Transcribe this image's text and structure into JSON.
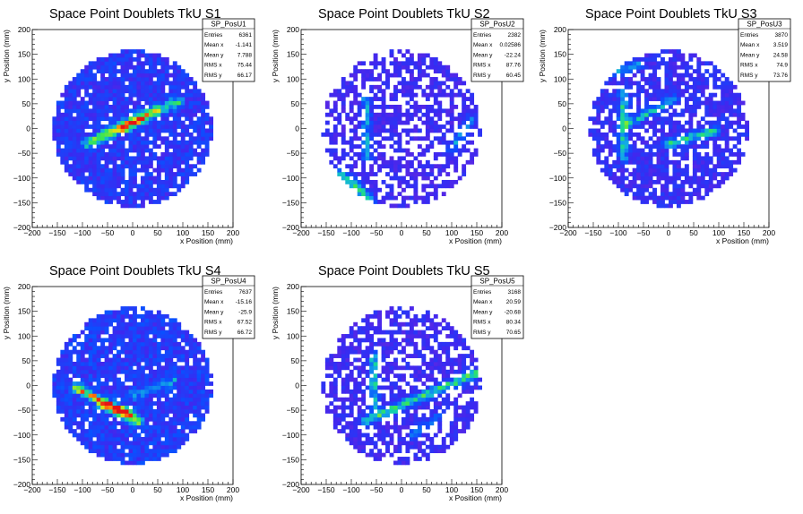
{
  "chart_data": [
    {
      "type": "heatmap",
      "title": "Space Point Doublets TkU S1",
      "xlabel": "x Position (mm)",
      "ylabel": "y Position (mm)",
      "xlim": [
        -200,
        200
      ],
      "ylim": [
        -200,
        200
      ],
      "x_ticks": [
        "−200",
        "−150",
        "−100",
        "−50",
        "0",
        "50",
        "100",
        "150",
        "200"
      ],
      "y_ticks": [
        "−200",
        "−150",
        "−100",
        "−50",
        "0",
        "50",
        "100",
        "150",
        "200"
      ],
      "stats": {
        "name": "SP_PosU1",
        "rows": [
          {
            "label": "Entries",
            "value": "6361"
          },
          {
            "label": "Mean x",
            "value": "-1.141"
          },
          {
            "label": "Mean y",
            "value": "7.788"
          },
          {
            "label": "RMS x",
            "value": "75.44"
          },
          {
            "label": "RMS y",
            "value": "66.17"
          }
        ]
      },
      "features": {
        "lines": [
          {
            "x1": -90,
            "y1": -30,
            "x2": 90,
            "y2": 55,
            "strength": 0.45
          },
          {
            "x1": -20,
            "y1": 0,
            "x2": 20,
            "y2": 20,
            "strength": 0.35
          },
          {
            "x1": -60,
            "y1": -10,
            "x2": 40,
            "y2": 40,
            "strength": 0.2
          }
        ],
        "base": 0.22,
        "empty_rate": 0.12,
        "seed": 11
      }
    },
    {
      "type": "heatmap",
      "title": "Space Point Doublets TkU S2",
      "xlabel": "x Position (mm)",
      "ylabel": "y Position (mm)",
      "xlim": [
        -200,
        200
      ],
      "ylim": [
        -200,
        200
      ],
      "x_ticks": [
        "−200",
        "−150",
        "−100",
        "−50",
        "0",
        "50",
        "100",
        "150",
        "200"
      ],
      "y_ticks": [
        "−200",
        "−150",
        "−100",
        "−50",
        "0",
        "50",
        "100",
        "150",
        "200"
      ],
      "stats": {
        "name": "SP_PosU2",
        "rows": [
          {
            "label": "Entries",
            "value": "2382"
          },
          {
            "label": "Mean x",
            "value": "0.02586"
          },
          {
            "label": "Mean y",
            "value": "-22.24"
          },
          {
            "label": "RMS x",
            "value": "87.76"
          },
          {
            "label": "RMS y",
            "value": "60.45"
          }
        ]
      },
      "features": {
        "lines": [
          {
            "x1": -120,
            "y1": -90,
            "x2": -60,
            "y2": -145,
            "strength": 0.4
          },
          {
            "x1": -70,
            "y1": -60,
            "x2": -70,
            "y2": 60,
            "strength": 0.3
          },
          {
            "x1": 100,
            "y1": -40,
            "x2": 140,
            "y2": 20,
            "strength": 0.25
          }
        ],
        "base": 0.14,
        "empty_rate": 0.38,
        "seed": 27
      }
    },
    {
      "type": "heatmap",
      "title": "Space Point Doublets TkU S3",
      "xlabel": "x Position (mm)",
      "ylabel": "y Position (mm)",
      "xlim": [
        -200,
        200
      ],
      "ylim": [
        -200,
        200
      ],
      "x_ticks": [
        "−200",
        "−150",
        "−100",
        "−50",
        "0",
        "50",
        "100",
        "150",
        "200"
      ],
      "y_ticks": [
        "−200",
        "−150",
        "−100",
        "−50",
        "0",
        "50",
        "100",
        "150",
        "200"
      ],
      "stats": {
        "name": "SP_PosU3",
        "rows": [
          {
            "label": "Entries",
            "value": "3870"
          },
          {
            "label": "Mean x",
            "value": "3.519"
          },
          {
            "label": "Mean y",
            "value": "24.58"
          },
          {
            "label": "RMS x",
            "value": "74.9"
          },
          {
            "label": "RMS y",
            "value": "73.76"
          }
        ]
      },
      "features": {
        "lines": [
          {
            "x1": -90,
            "y1": -60,
            "x2": -90,
            "y2": 70,
            "strength": 0.35
          },
          {
            "x1": -80,
            "y1": 10,
            "x2": 10,
            "y2": 60,
            "strength": 0.3
          },
          {
            "x1": 0,
            "y1": -30,
            "x2": 90,
            "y2": -5,
            "strength": 0.4
          },
          {
            "x1": -120,
            "y1": 110,
            "x2": -60,
            "y2": 130,
            "strength": 0.25
          }
        ],
        "base": 0.17,
        "empty_rate": 0.26,
        "seed": 43
      }
    },
    {
      "type": "heatmap",
      "title": "Space Point Doublets TkU S4",
      "xlabel": "x Position (mm)",
      "ylabel": "y Position (mm)",
      "xlim": [
        -200,
        200
      ],
      "ylim": [
        -200,
        200
      ],
      "x_ticks": [
        "−200",
        "−150",
        "−100",
        "−50",
        "0",
        "50",
        "100",
        "150",
        "200"
      ],
      "y_ticks": [
        "−200",
        "−150",
        "−100",
        "−50",
        "0",
        "50",
        "100",
        "150",
        "200"
      ],
      "stats": {
        "name": "SP_PosU4",
        "rows": [
          {
            "label": "Entries",
            "value": "7637"
          },
          {
            "label": "Mean x",
            "value": "-15.16"
          },
          {
            "label": "Mean y",
            "value": "-25.9"
          },
          {
            "label": "RMS x",
            "value": "67.52"
          },
          {
            "label": "RMS y",
            "value": "66.72"
          }
        ]
      },
      "features": {
        "lines": [
          {
            "x1": -110,
            "y1": -5,
            "x2": 10,
            "y2": -70,
            "strength": 0.55
          },
          {
            "x1": -60,
            "y1": -40,
            "x2": -10,
            "y2": -55,
            "strength": 0.4
          },
          {
            "x1": 0,
            "y1": -20,
            "x2": 80,
            "y2": 10,
            "strength": 0.2
          }
        ],
        "base": 0.24,
        "empty_rate": 0.1,
        "seed": 61
      }
    },
    {
      "type": "heatmap",
      "title": "Space Point Doublets TkU S5",
      "xlabel": "x Position (mm)",
      "ylabel": "y Position (mm)",
      "xlim": [
        -200,
        200
      ],
      "ylim": [
        -200,
        200
      ],
      "x_ticks": [
        "−200",
        "−150",
        "−100",
        "−50",
        "0",
        "50",
        "100",
        "150",
        "200"
      ],
      "y_ticks": [
        "−200",
        "−150",
        "−100",
        "−50",
        "0",
        "50",
        "100",
        "150",
        "200"
      ],
      "stats": {
        "name": "SP_PosU5",
        "rows": [
          {
            "label": "Entries",
            "value": "3168"
          },
          {
            "label": "Mean x",
            "value": "20.59"
          },
          {
            "label": "Mean y",
            "value": "-20.68"
          },
          {
            "label": "RMS x",
            "value": "80.34"
          },
          {
            "label": "RMS y",
            "value": "70.65"
          }
        ]
      },
      "features": {
        "lines": [
          {
            "x1": -70,
            "y1": -70,
            "x2": 150,
            "y2": 25,
            "strength": 0.45
          },
          {
            "x1": -55,
            "y1": -40,
            "x2": -55,
            "y2": 60,
            "strength": 0.35
          },
          {
            "x1": 20,
            "y1": -100,
            "x2": 80,
            "y2": -60,
            "strength": 0.2
          }
        ],
        "base": 0.15,
        "empty_rate": 0.33,
        "seed": 79
      }
    }
  ]
}
